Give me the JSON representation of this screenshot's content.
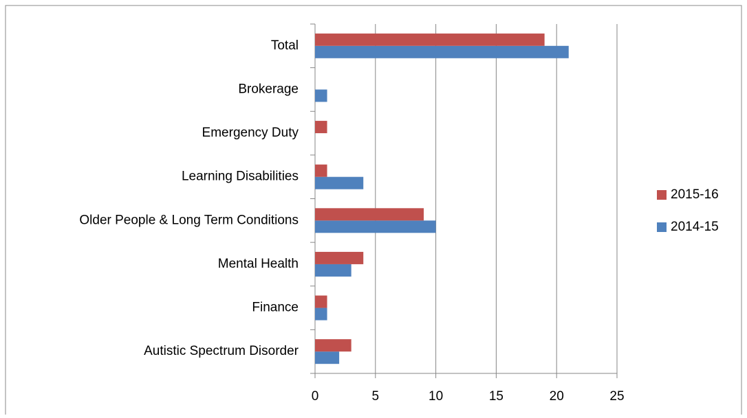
{
  "chart_data": {
    "type": "hbar",
    "categories": [
      "Autistic Spectrum Disorder",
      "Finance",
      "Mental Health",
      "Older People & Long Term Conditions",
      "Learning Disabilities",
      "Emergency Duty",
      "Brokerage",
      "Total"
    ],
    "series": [
      {
        "name": "2014-15",
        "color": "#4f81bd",
        "values": [
          2,
          1,
          3,
          10,
          4,
          0,
          1,
          21
        ]
      },
      {
        "name": "2015-16",
        "color": "#c0504d",
        "values": [
          3,
          1,
          4,
          9,
          1,
          1,
          0,
          19
        ]
      }
    ],
    "xlim": [
      0,
      25
    ],
    "xticks": [
      0,
      5,
      10,
      15,
      20,
      25
    ],
    "grid": true,
    "legend": "right"
  }
}
